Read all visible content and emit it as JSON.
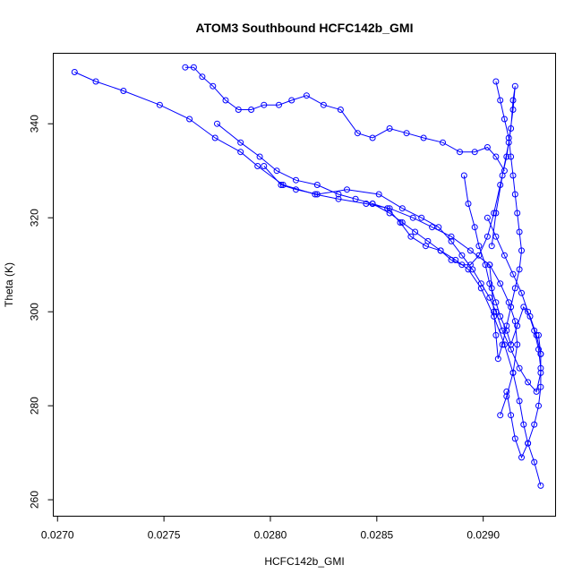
{
  "chart_data": {
    "type": "scatter",
    "title": "ATOM3 Southbound HCFC142b_GMI",
    "xlabel": "HCFC142b_GMI",
    "ylabel": "Theta (K)",
    "xlim": [
      0.02698,
      0.02934
    ],
    "ylim": [
      256.5,
      355
    ],
    "x_ticks": [
      0.027,
      0.0275,
      0.028,
      0.0285,
      0.029
    ],
    "x_tick_labels": [
      "0.0270",
      "0.0275",
      "0.0280",
      "0.0285",
      "0.0290"
    ],
    "y_ticks": [
      260,
      280,
      300,
      320,
      340
    ],
    "y_tick_labels": [
      "260",
      "280",
      "300",
      "320",
      "340"
    ],
    "grid": false,
    "legend": "none",
    "marker": "open-circle",
    "line_style": "connected",
    "color": "#0000ff",
    "series": [
      {
        "x": [
          0.02708,
          0.02718,
          0.02731,
          0.02748,
          0.02762,
          0.02774,
          0.02786,
          0.02794,
          0.02806,
          0.02821,
          0.02832,
          0.02845,
          0.02856,
          0.02867,
          0.02876,
          0.02885,
          0.02894,
          0.02903,
          0.02908,
          0.02912,
          0.02915,
          0.02916,
          0.02914,
          0.02911,
          0.02908
        ],
        "y": [
          351,
          349,
          347,
          344,
          341,
          337,
          334,
          331,
          327,
          325,
          324,
          323,
          322,
          320,
          318,
          316,
          313,
          310,
          306,
          302,
          298,
          293,
          287,
          282,
          278
        ]
      },
      {
        "x": [
          0.0276,
          0.02764,
          0.02768,
          0.02773,
          0.02779,
          0.02785,
          0.02791,
          0.02797,
          0.02804,
          0.0281,
          0.02817,
          0.02825,
          0.02833,
          0.02841,
          0.02848,
          0.02856,
          0.02864,
          0.02872,
          0.02881,
          0.02889,
          0.02896,
          0.02902,
          0.02906,
          0.0291
        ],
        "y": [
          352,
          352,
          350,
          348,
          345,
          343,
          343,
          344,
          344,
          345,
          346,
          344,
          343,
          338,
          337,
          339,
          338,
          337,
          336,
          334,
          334,
          335,
          333,
          330
        ]
      },
      {
        "x": [
          0.02775,
          0.02786,
          0.02795,
          0.02803,
          0.02812,
          0.02822,
          0.02832,
          0.0284,
          0.02848,
          0.02855,
          0.02861,
          0.02866,
          0.02873,
          0.0288,
          0.02887,
          0.02893,
          0.02899,
          0.02905,
          0.0291,
          0.02914,
          0.02917,
          0.02919,
          0.02921,
          0.02924,
          0.02927
        ],
        "y": [
          340,
          336,
          333,
          330,
          328,
          327,
          325,
          324,
          323,
          322,
          319,
          316,
          314,
          313,
          311,
          309,
          305,
          299,
          293,
          287,
          281,
          276,
          272,
          268,
          263
        ]
      },
      {
        "x": [
          0.02797,
          0.02805,
          0.02812,
          0.02822,
          0.02836,
          0.02851,
          0.02862,
          0.02871,
          0.02879,
          0.02885,
          0.0289,
          0.02895,
          0.02899,
          0.02903,
          0.02906,
          0.02909,
          0.02913,
          0.02917,
          0.02921,
          0.02925,
          0.02927,
          0.02927,
          0.02926
        ],
        "y": [
          331,
          327,
          326,
          325,
          326,
          325,
          322,
          320,
          318,
          315,
          312,
          309,
          306,
          303,
          300,
          296,
          292,
          288,
          285,
          283,
          287,
          291,
          295
        ]
      },
      {
        "x": [
          0.02848,
          0.02856,
          0.02862,
          0.02868,
          0.02874,
          0.0288,
          0.02885,
          0.0289,
          0.02894,
          0.02898,
          0.02902,
          0.02905,
          0.02908,
          0.02911,
          0.02913,
          0.02914,
          0.02915,
          0.02914,
          0.02912,
          0.02909,
          0.02906,
          0.02904
        ],
        "y": [
          323,
          321,
          319,
          317,
          315,
          313,
          311,
          310,
          310,
          312,
          316,
          321,
          327,
          333,
          339,
          345,
          348,
          343,
          336,
          329,
          321,
          314
        ]
      },
      {
        "x": [
          0.02906,
          0.02908,
          0.0291,
          0.02912,
          0.02913,
          0.02914,
          0.02915,
          0.02916,
          0.02917,
          0.02918,
          0.02917,
          0.02915,
          0.02913,
          0.02911,
          0.02909,
          0.02907,
          0.02906,
          0.02905,
          0.02904,
          0.02903
        ],
        "y": [
          349,
          345,
          341,
          337,
          333,
          329,
          325,
          321,
          317,
          313,
          309,
          305,
          301,
          297,
          293,
          290,
          295,
          300,
          305,
          310
        ]
      },
      {
        "x": [
          0.02902,
          0.02906,
          0.0291,
          0.02914,
          0.02918,
          0.02921,
          0.02924,
          0.02926,
          0.02927,
          0.02927,
          0.02926,
          0.02924,
          0.02921,
          0.02918,
          0.02915,
          0.02913,
          0.02911
        ],
        "y": [
          320,
          316,
          312,
          308,
          304,
          300,
          296,
          292,
          288,
          284,
          280,
          276,
          272,
          269,
          273,
          278,
          283
        ]
      },
      {
        "x": [
          0.02891,
          0.02893,
          0.02896,
          0.02898,
          0.02901,
          0.02903,
          0.02906,
          0.02908,
          0.02911,
          0.02913,
          0.02916,
          0.02919,
          0.02922,
          0.02925,
          0.02927
        ],
        "y": [
          329,
          323,
          318,
          314,
          310,
          306,
          302,
          299,
          296,
          293,
          297,
          301,
          299,
          295,
          291
        ]
      }
    ]
  }
}
